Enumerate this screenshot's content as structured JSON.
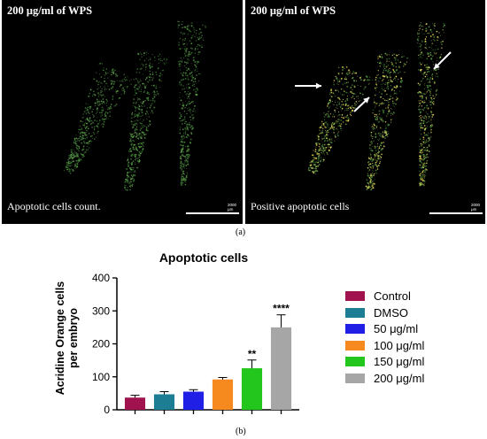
{
  "figure": {
    "panel_left": {
      "title": "200 μg/ml of WPS",
      "caption": "Apoptotic cells count.",
      "scale": "2000 μm"
    },
    "panel_right": {
      "title": "200 μg/ml of WPS",
      "caption": "Positive apoptotic cells",
      "scale": "2000 μm"
    },
    "label_a": "(a)",
    "label_b": "(b)"
  },
  "chart_data": {
    "type": "bar",
    "title": "Apoptotic cells",
    "ylabel": "Acridine Orange cells per embryo",
    "ylabel_lines": [
      "Acridine Orange cells",
      "per embryo"
    ],
    "xlabel": "",
    "ylim": [
      0,
      400
    ],
    "yticks": [
      "0",
      "100",
      "200",
      "300",
      "400"
    ],
    "categories": [
      "Control",
      "DMSO",
      "50 μg/ml",
      "100 μg/ml",
      "150 μg/ml",
      "200 μg/ml"
    ],
    "values": [
      37,
      47,
      55,
      92,
      126,
      250
    ],
    "errors": [
      7,
      8,
      6,
      6,
      25,
      38
    ],
    "significance": [
      "",
      "",
      "",
      "",
      "**",
      "****"
    ],
    "colors": [
      "#a0134f",
      "#1d7d92",
      "#1f1fe6",
      "#f78a1e",
      "#22c61d",
      "#a6a6a6"
    ],
    "legend": {
      "position": "right",
      "entries": [
        "Control",
        "DMSO",
        "50 μg/ml",
        "100 μg/ml",
        "150 μg/ml",
        "200 μg/ml"
      ]
    },
    "grid": false
  }
}
